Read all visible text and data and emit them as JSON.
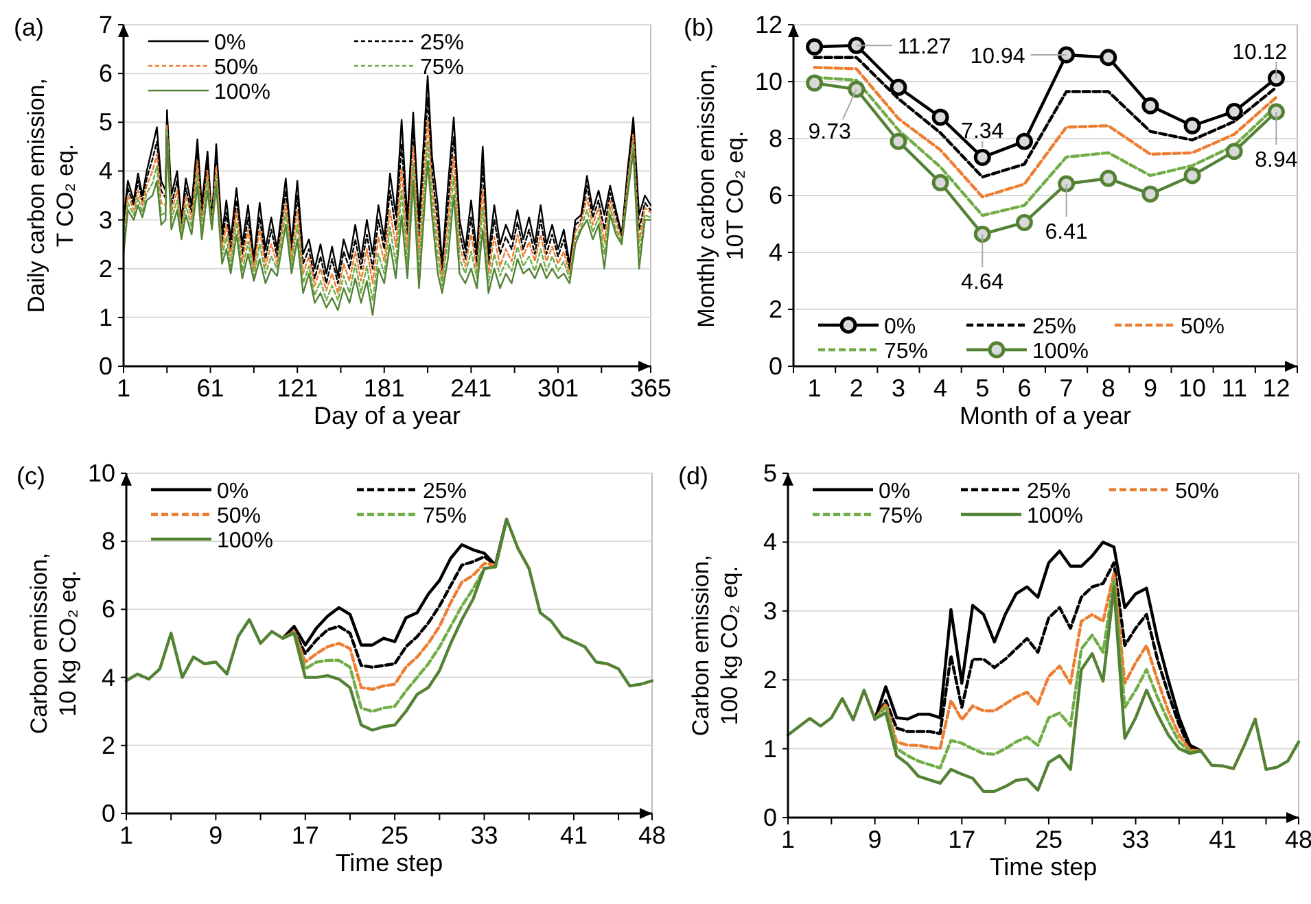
{
  "chart_data": [
    {
      "type": "line",
      "title": "(a)",
      "xlabel": "Day of a year",
      "ylabel": "Daily carbon emission,\nT CO₂ eq.",
      "xlim": [
        1,
        365
      ],
      "xticks": [
        1,
        {
          "value": 31,
          "label": null
        },
        61,
        {
          "value": 91,
          "label": null
        },
        121,
        {
          "value": 151,
          "label": null
        },
        181,
        {
          "value": 211,
          "label": null
        },
        241,
        {
          "value": 271,
          "label": null
        },
        301,
        {
          "value": 331,
          "label": null
        },
        365
      ],
      "ylim": [
        0,
        7
      ],
      "yticks": [
        0,
        1,
        2,
        3,
        4,
        5,
        6,
        7
      ],
      "grid": "y",
      "legend": "top left",
      "x": [
        1,
        4,
        8,
        11,
        14,
        17,
        21,
        24,
        27,
        30,
        31,
        34,
        38,
        41,
        44,
        48,
        52,
        55,
        59,
        62,
        65,
        69,
        72,
        75,
        79,
        83,
        87,
        91,
        95,
        99,
        103,
        107,
        113,
        117,
        121,
        125,
        129,
        133,
        137,
        141,
        145,
        149,
        153,
        157,
        161,
        165,
        169,
        173,
        177,
        181,
        185,
        189,
        193,
        197,
        201,
        205,
        211,
        214,
        218,
        221,
        225,
        229,
        233,
        237,
        241,
        245,
        249,
        253,
        257,
        261,
        265,
        269,
        273,
        277,
        281,
        285,
        289,
        293,
        297,
        301,
        305,
        309,
        313,
        317,
        321,
        325,
        329,
        333,
        337,
        341,
        345,
        349,
        353,
        357,
        361,
        365
      ],
      "series": [
        {
          "name": "0%",
          "color": "#000000",
          "line_style": "solid",
          "values": [
            3.0,
            3.8,
            3.4,
            3.95,
            3.5,
            4.0,
            4.5,
            4.9,
            3.8,
            3.6,
            5.25,
            3.5,
            4.0,
            3.0,
            3.85,
            3.3,
            4.65,
            3.3,
            4.4,
            3.0,
            4.55,
            2.7,
            3.4,
            2.6,
            3.65,
            2.5,
            3.3,
            2.2,
            3.35,
            2.4,
            3.05,
            2.4,
            3.85,
            2.5,
            3.8,
            2.3,
            2.6,
            2.0,
            2.5,
            1.9,
            2.45,
            1.85,
            2.6,
            2.2,
            2.9,
            2.2,
            3.0,
            2.3,
            3.3,
            2.6,
            3.95,
            3.1,
            5.05,
            3.0,
            5.2,
            3.0,
            5.95,
            4.3,
            3.3,
            2.1,
            3.7,
            5.1,
            3.0,
            2.4,
            3.4,
            2.3,
            4.5,
            2.3,
            3.3,
            2.5,
            2.9,
            2.6,
            3.2,
            2.6,
            3.05,
            2.5,
            3.3,
            2.5,
            2.9,
            2.4,
            2.8,
            2.1,
            3.0,
            3.1,
            3.9,
            3.2,
            3.6,
            3.1,
            3.7,
            3.2,
            2.7,
            4.0,
            5.1,
            3.1,
            3.5,
            3.3
          ]
        },
        {
          "name": "25%",
          "color": "#000000",
          "line_style": "dashed",
          "values": [
            2.8,
            3.65,
            3.3,
            3.8,
            3.4,
            3.85,
            4.25,
            4.6,
            3.6,
            3.45,
            5.1,
            3.3,
            3.8,
            2.9,
            3.65,
            3.15,
            4.4,
            3.1,
            4.2,
            2.95,
            4.35,
            2.55,
            3.15,
            2.4,
            3.4,
            2.3,
            3.05,
            2.1,
            3.05,
            2.2,
            2.8,
            2.25,
            3.6,
            2.35,
            3.5,
            2.1,
            2.4,
            1.8,
            2.25,
            1.7,
            2.2,
            1.7,
            2.35,
            2.0,
            2.6,
            2.0,
            2.7,
            2.0,
            3.0,
            2.4,
            3.6,
            2.8,
            4.55,
            2.7,
            4.85,
            2.65,
            5.5,
            4.0,
            2.95,
            1.95,
            3.3,
            4.7,
            2.75,
            2.2,
            3.05,
            2.1,
            4.1,
            2.1,
            3.0,
            2.3,
            2.65,
            2.4,
            2.95,
            2.4,
            2.8,
            2.3,
            3.0,
            2.3,
            2.7,
            2.25,
            2.6,
            2.0,
            2.9,
            3.0,
            3.7,
            3.05,
            3.4,
            2.8,
            3.55,
            3.1,
            2.65,
            3.9,
            4.9,
            2.8,
            3.35,
            3.2
          ]
        },
        {
          "name": "50%",
          "color": "#ed7d31",
          "line_style": "dashed",
          "values": [
            2.65,
            3.5,
            3.2,
            3.6,
            3.3,
            3.7,
            4.0,
            4.35,
            3.35,
            3.3,
            4.95,
            3.15,
            3.6,
            2.8,
            3.5,
            3.0,
            4.2,
            2.95,
            4.0,
            2.9,
            4.1,
            2.4,
            2.9,
            2.25,
            3.2,
            2.15,
            2.8,
            2.0,
            2.8,
            2.05,
            2.5,
            2.1,
            3.35,
            2.2,
            3.2,
            1.9,
            2.25,
            1.65,
            2.0,
            1.55,
            1.9,
            1.5,
            2.1,
            1.75,
            2.35,
            1.75,
            2.4,
            1.7,
            2.65,
            2.15,
            3.2,
            2.45,
            4.05,
            2.4,
            4.5,
            2.3,
            5.05,
            3.7,
            2.6,
            1.8,
            2.95,
            4.3,
            2.45,
            2.05,
            2.7,
            1.95,
            3.65,
            1.9,
            2.65,
            2.05,
            2.4,
            2.15,
            2.7,
            2.25,
            2.55,
            2.15,
            2.7,
            2.15,
            2.45,
            2.1,
            2.35,
            1.9,
            2.75,
            2.95,
            3.45,
            2.9,
            3.25,
            2.55,
            3.4,
            2.95,
            2.6,
            3.75,
            4.75,
            2.55,
            3.25,
            3.15
          ]
        },
        {
          "name": "75%",
          "color": "#70ad47",
          "line_style": "dashed",
          "values": [
            2.5,
            3.35,
            3.1,
            3.45,
            3.15,
            3.55,
            3.75,
            4.1,
            3.1,
            3.15,
            4.85,
            3.0,
            3.4,
            2.7,
            3.3,
            2.85,
            3.95,
            2.8,
            3.8,
            2.85,
            3.9,
            2.25,
            2.65,
            2.05,
            2.95,
            1.95,
            2.55,
            1.85,
            2.5,
            1.9,
            2.25,
            2.0,
            3.15,
            2.05,
            2.9,
            1.7,
            2.05,
            1.45,
            1.75,
            1.35,
            1.65,
            1.35,
            1.85,
            1.5,
            2.1,
            1.5,
            2.05,
            1.35,
            2.3,
            1.9,
            2.85,
            2.1,
            3.6,
            2.1,
            4.15,
            1.95,
            4.6,
            3.4,
            2.25,
            1.65,
            2.6,
            3.9,
            2.2,
            1.9,
            2.35,
            1.8,
            3.25,
            1.7,
            2.3,
            1.85,
            2.15,
            1.95,
            2.45,
            2.05,
            2.25,
            1.95,
            2.4,
            1.95,
            2.25,
            1.95,
            2.15,
            1.8,
            2.6,
            2.85,
            3.2,
            2.75,
            3.05,
            2.3,
            3.25,
            2.8,
            2.55,
            3.6,
            4.55,
            2.3,
            3.1,
            3.05
          ]
        },
        {
          "name": "100%",
          "color": "#548235",
          "line_style": "solid",
          "values": [
            2.3,
            3.2,
            3.0,
            3.3,
            3.05,
            3.4,
            3.5,
            3.8,
            2.9,
            3.0,
            4.7,
            2.8,
            3.2,
            2.6,
            3.1,
            2.7,
            3.7,
            2.6,
            3.6,
            2.8,
            3.7,
            2.1,
            2.4,
            1.9,
            2.7,
            1.8,
            2.3,
            1.75,
            2.2,
            1.7,
            2.0,
            1.85,
            2.9,
            1.9,
            2.6,
            1.5,
            1.9,
            1.3,
            1.5,
            1.2,
            1.4,
            1.15,
            1.6,
            1.3,
            1.8,
            1.3,
            1.75,
            1.05,
            2.0,
            1.7,
            2.5,
            1.8,
            3.1,
            1.8,
            3.8,
            1.6,
            4.2,
            3.1,
            1.9,
            1.5,
            2.2,
            3.5,
            1.9,
            1.7,
            2.0,
            1.6,
            2.8,
            1.5,
            2.0,
            1.6,
            1.9,
            1.7,
            2.2,
            1.9,
            2.0,
            1.8,
            2.1,
            1.8,
            2.0,
            1.8,
            1.9,
            1.7,
            2.5,
            2.8,
            3.0,
            2.6,
            2.9,
            2.0,
            3.1,
            2.7,
            2.5,
            3.5,
            4.4,
            2.0,
            3.0,
            3.0
          ]
        }
      ]
    },
    {
      "type": "line",
      "title": "(b)",
      "xlabel": "Month of a year",
      "ylabel": "Monthly carbon emission,\n10T CO₂ eq.",
      "categories": [
        "1",
        "2",
        "3",
        "4",
        "5",
        "6",
        "7",
        "8",
        "9",
        "10",
        "11",
        "12"
      ],
      "ylim": [
        0,
        12
      ],
      "yticks": [
        0,
        2,
        4,
        6,
        8,
        10,
        12
      ],
      "grid": "y",
      "legend": "bottom left",
      "series": [
        {
          "name": "0%",
          "color": "#000000",
          "line_style": "solid",
          "marker": "circle",
          "values": [
            11.22,
            11.27,
            9.8,
            8.75,
            7.34,
            7.9,
            10.94,
            10.85,
            9.15,
            8.45,
            8.95,
            10.12
          ],
          "value_labels": [
            null,
            "11.27",
            null,
            null,
            "7.34",
            null,
            "10.94",
            null,
            null,
            null,
            null,
            "10.12"
          ]
        },
        {
          "name": "25%",
          "color": "#000000",
          "line_style": "dashed",
          "values": [
            10.85,
            10.85,
            9.4,
            8.2,
            6.65,
            7.1,
            9.65,
            9.65,
            8.25,
            7.95,
            8.6,
            9.8
          ]
        },
        {
          "name": "50%",
          "color": "#ed7d31",
          "line_style": "dashed",
          "values": [
            10.5,
            10.45,
            8.7,
            7.6,
            5.95,
            6.4,
            8.4,
            8.45,
            7.45,
            7.5,
            8.15,
            9.45
          ]
        },
        {
          "name": "75%",
          "color": "#70ad47",
          "line_style": "dashed",
          "values": [
            10.15,
            10.05,
            8.3,
            7.0,
            5.3,
            5.65,
            7.35,
            7.5,
            6.7,
            7.05,
            7.75,
            9.15
          ]
        },
        {
          "name": "100%",
          "color": "#548235",
          "line_style": "solid",
          "marker": "circle",
          "values": [
            9.95,
            9.73,
            7.9,
            6.45,
            4.64,
            5.05,
            6.41,
            6.6,
            6.05,
            6.7,
            7.55,
            8.94
          ],
          "value_labels": [
            null,
            "9.73",
            null,
            null,
            "4.64",
            null,
            "6.41",
            null,
            null,
            null,
            null,
            "8.94"
          ]
        }
      ]
    },
    {
      "type": "line",
      "title": "(c)",
      "xlabel": "Time step",
      "ylabel": "Carbon emission,\n10 kg CO₂ eq.",
      "x": [
        1,
        2,
        3,
        4,
        5,
        6,
        7,
        8,
        9,
        10,
        11,
        12,
        13,
        14,
        15,
        16,
        17,
        18,
        19,
        20,
        21,
        22,
        23,
        24,
        25,
        26,
        27,
        28,
        29,
        30,
        31,
        32,
        33,
        34,
        35,
        36,
        37,
        38,
        39,
        40,
        41,
        42,
        43,
        44,
        45,
        46,
        47,
        48
      ],
      "xlim": [
        1,
        48
      ],
      "xticks": [
        1,
        {
          "value": 5,
          "label": null
        },
        9,
        {
          "value": 13,
          "label": null
        },
        17,
        {
          "value": 21,
          "label": null
        },
        25,
        {
          "value": 29,
          "label": null
        },
        33,
        {
          "value": 37,
          "label": null
        },
        41,
        {
          "value": 45,
          "label": null
        },
        48
      ],
      "ylim": [
        0,
        10
      ],
      "yticks": [
        0,
        2,
        4,
        6,
        8,
        10
      ],
      "grid": "y",
      "legend": "top left",
      "series": [
        {
          "name": "0%",
          "color": "#000000",
          "line_style": "solid",
          "values": [
            null,
            null,
            null,
            null,
            null,
            null,
            null,
            null,
            null,
            null,
            null,
            null,
            null,
            null,
            5.15,
            5.5,
            4.95,
            5.45,
            5.8,
            6.05,
            5.85,
            4.95,
            4.95,
            5.15,
            5.05,
            5.75,
            5.9,
            6.45,
            6.85,
            7.5,
            7.9,
            7.75,
            7.65,
            7.3,
            8.65,
            null,
            null,
            null,
            null,
            null,
            null,
            null,
            null,
            null,
            null,
            null,
            null,
            null
          ]
        },
        {
          "name": "25%",
          "color": "#000000",
          "line_style": "dashed",
          "values": [
            null,
            null,
            null,
            null,
            null,
            null,
            null,
            null,
            null,
            null,
            null,
            null,
            null,
            null,
            5.15,
            5.35,
            4.7,
            5.1,
            5.4,
            5.5,
            5.3,
            4.35,
            4.3,
            4.35,
            4.4,
            4.9,
            5.2,
            5.6,
            6.1,
            6.7,
            7.3,
            7.4,
            7.55,
            7.3,
            8.65,
            null,
            null,
            null,
            null,
            null,
            null,
            null,
            null,
            null,
            null,
            null,
            null,
            null
          ]
        },
        {
          "name": "50%",
          "color": "#ed7d31",
          "line_style": "dashed",
          "values": [
            null,
            null,
            null,
            null,
            null,
            null,
            null,
            null,
            null,
            null,
            null,
            null,
            null,
            null,
            5.15,
            5.35,
            4.45,
            4.7,
            4.9,
            5.0,
            4.85,
            3.7,
            3.65,
            3.75,
            3.8,
            4.3,
            4.6,
            5.0,
            5.5,
            6.2,
            6.8,
            7.0,
            7.35,
            7.3,
            null,
            null,
            null,
            null,
            null,
            null,
            null,
            null,
            null,
            null,
            null,
            null,
            null,
            null
          ]
        },
        {
          "name": "75%",
          "color": "#70ad47",
          "line_style": "dashed",
          "values": [
            null,
            null,
            null,
            null,
            null,
            null,
            null,
            null,
            null,
            null,
            null,
            null,
            null,
            null,
            5.15,
            5.3,
            4.25,
            4.45,
            4.5,
            4.5,
            4.3,
            3.1,
            3.0,
            3.1,
            3.15,
            3.6,
            4.0,
            4.4,
            4.9,
            5.5,
            6.1,
            6.6,
            7.2,
            7.25,
            8.65,
            null,
            null,
            null,
            null,
            null,
            null,
            null,
            null,
            null,
            null,
            null,
            null,
            null
          ]
        },
        {
          "name": "100%",
          "color": "#548235",
          "line_style": "solid",
          "values": [
            3.9,
            4.1,
            3.95,
            4.25,
            5.3,
            4.0,
            4.6,
            4.4,
            4.45,
            4.1,
            5.2,
            5.7,
            5.0,
            5.35,
            5.15,
            5.3,
            4.0,
            4.0,
            4.05,
            3.95,
            3.7,
            2.6,
            2.45,
            2.55,
            2.6,
            3.0,
            3.5,
            3.7,
            4.2,
            5.0,
            5.7,
            6.3,
            7.2,
            7.25,
            8.65,
            7.8,
            7.2,
            5.9,
            5.65,
            5.2,
            5.05,
            4.9,
            4.45,
            4.4,
            4.25,
            3.75,
            3.8,
            3.9
          ]
        }
      ]
    },
    {
      "type": "line",
      "title": "(d)",
      "xlabel": "Time step",
      "ylabel": "Carbon emission,\n100 kg CO₂ eq.",
      "x": [
        1,
        2,
        3,
        4,
        5,
        6,
        7,
        8,
        9,
        10,
        11,
        12,
        13,
        14,
        15,
        16,
        17,
        18,
        19,
        20,
        21,
        22,
        23,
        24,
        25,
        26,
        27,
        28,
        29,
        30,
        31,
        32,
        33,
        34,
        35,
        36,
        37,
        38,
        39,
        40,
        41,
        42,
        43,
        44,
        45,
        46,
        47,
        48
      ],
      "xlim": [
        1,
        48
      ],
      "xticks": [
        1,
        {
          "value": 5,
          "label": null
        },
        9,
        {
          "value": 13,
          "label": null
        },
        17,
        {
          "value": 21,
          "label": null
        },
        25,
        {
          "value": 29,
          "label": null
        },
        33,
        {
          "value": 37,
          "label": null
        },
        41,
        {
          "value": 45,
          "label": null
        },
        48
      ],
      "ylim": [
        0,
        5
      ],
      "yticks": [
        0,
        1,
        2,
        3,
        4,
        5
      ],
      "grid": "y",
      "legend": "top left",
      "series": [
        {
          "name": "0%",
          "color": "#000000",
          "line_style": "solid",
          "values": [
            null,
            null,
            null,
            null,
            null,
            null,
            null,
            null,
            1.43,
            1.9,
            1.45,
            1.43,
            1.5,
            1.5,
            1.45,
            3.02,
            1.95,
            3.08,
            2.95,
            2.55,
            2.95,
            3.25,
            3.35,
            3.2,
            3.7,
            3.87,
            3.65,
            3.65,
            3.8,
            4.0,
            3.93,
            3.05,
            3.25,
            3.33,
            2.6,
            2.0,
            1.45,
            1.05,
            0.97,
            null,
            null,
            null,
            null,
            null,
            null,
            null,
            null,
            null
          ]
        },
        {
          "name": "25%",
          "color": "#000000",
          "line_style": "dashed",
          "values": [
            null,
            null,
            null,
            null,
            null,
            null,
            null,
            null,
            1.43,
            1.7,
            1.3,
            1.25,
            1.25,
            1.25,
            1.22,
            2.35,
            1.6,
            2.3,
            2.3,
            2.18,
            2.3,
            2.45,
            2.6,
            2.4,
            2.9,
            3.05,
            2.75,
            3.2,
            3.35,
            3.4,
            3.7,
            2.5,
            2.75,
            2.95,
            2.3,
            1.8,
            1.35,
            1.0,
            0.97,
            null,
            null,
            null,
            null,
            null,
            null,
            null,
            null,
            null
          ]
        },
        {
          "name": "50%",
          "color": "#ed7d31",
          "line_style": "dashed",
          "values": [
            null,
            null,
            null,
            null,
            null,
            null,
            null,
            null,
            1.43,
            1.65,
            1.1,
            1.05,
            1.05,
            1.02,
            1.0,
            1.7,
            1.42,
            1.62,
            1.55,
            1.55,
            1.65,
            1.75,
            1.82,
            1.65,
            2.05,
            2.2,
            1.95,
            2.85,
            2.95,
            2.85,
            3.55,
            1.95,
            2.25,
            2.5,
            2.0,
            1.55,
            1.2,
            0.98,
            0.97,
            null,
            null,
            null,
            null,
            null,
            null,
            null,
            null,
            null
          ]
        },
        {
          "name": "75%",
          "color": "#70ad47",
          "line_style": "dashed",
          "values": [
            null,
            null,
            null,
            null,
            null,
            null,
            null,
            null,
            1.43,
            1.6,
            1.0,
            0.9,
            0.82,
            0.77,
            0.72,
            1.12,
            1.08,
            1.0,
            0.93,
            0.92,
            1.0,
            1.1,
            1.17,
            1.05,
            1.45,
            1.52,
            1.33,
            2.45,
            2.65,
            2.4,
            3.45,
            1.6,
            1.85,
            2.15,
            1.75,
            1.4,
            1.1,
            0.95,
            0.97,
            null,
            null,
            null,
            null,
            null,
            null,
            null,
            null,
            null
          ]
        },
        {
          "name": "100%",
          "color": "#548235",
          "line_style": "solid",
          "values": [
            1.2,
            1.32,
            1.44,
            1.33,
            1.45,
            1.73,
            1.42,
            1.85,
            1.43,
            1.52,
            0.9,
            0.78,
            0.6,
            0.55,
            0.5,
            0.7,
            0.63,
            0.57,
            0.38,
            0.38,
            0.45,
            0.54,
            0.56,
            0.4,
            0.8,
            0.9,
            0.7,
            2.15,
            2.38,
            1.98,
            3.35,
            1.15,
            1.45,
            1.85,
            1.5,
            1.2,
            1.0,
            0.93,
            0.97,
            0.76,
            0.75,
            0.71,
            1.05,
            1.43,
            0.7,
            0.73,
            0.82,
            1.1
          ]
        }
      ]
    }
  ]
}
